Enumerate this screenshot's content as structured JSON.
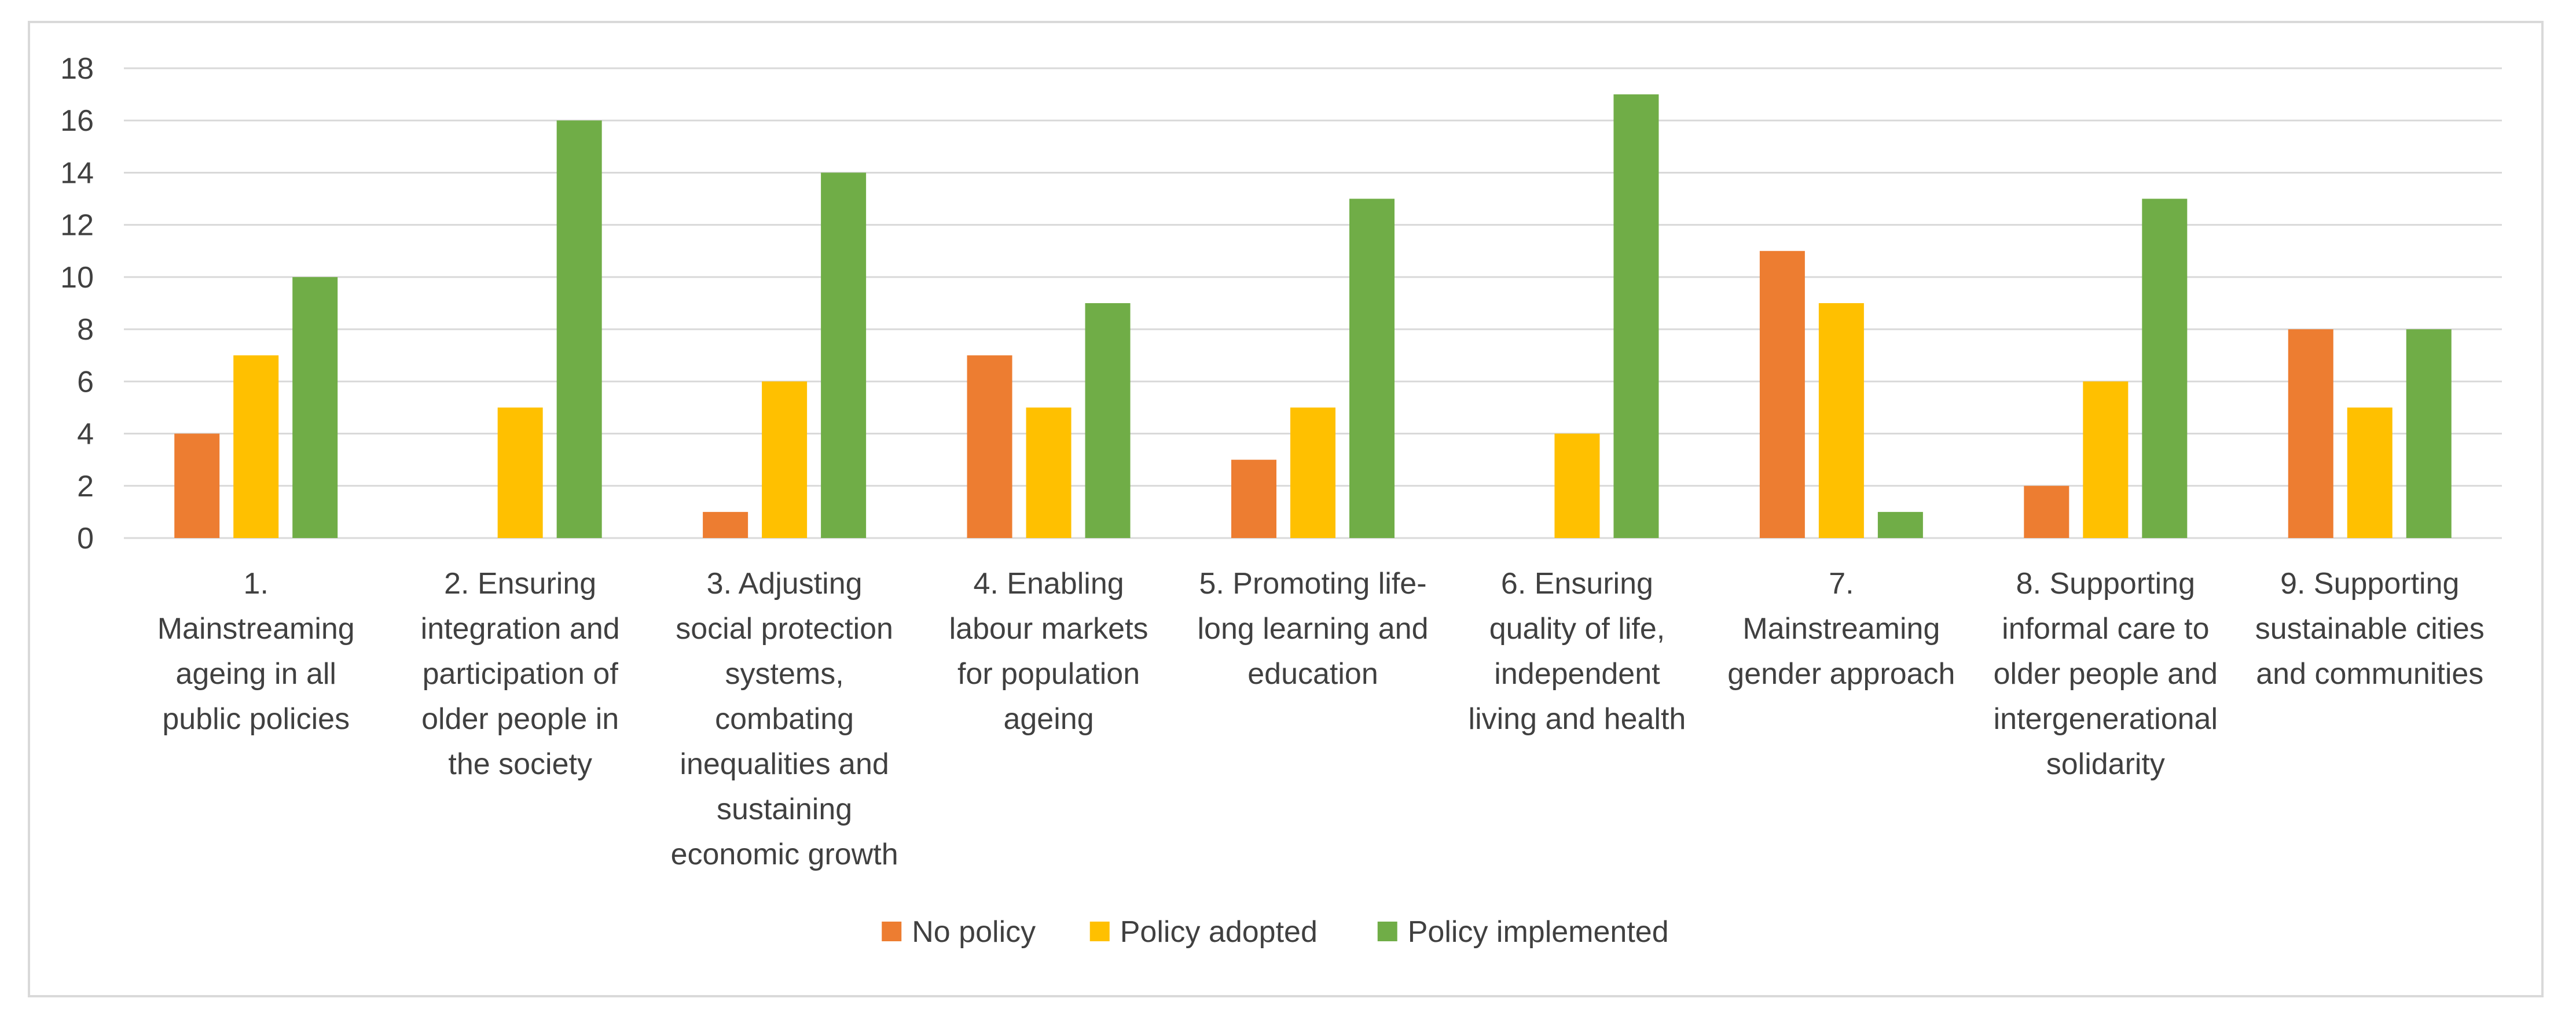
{
  "chart_data": {
    "type": "bar",
    "title": "",
    "xlabel": "",
    "ylabel": "",
    "ylim": [
      0,
      18
    ],
    "yticks": [
      0,
      2,
      4,
      6,
      8,
      10,
      12,
      14,
      16,
      18
    ],
    "grid": true,
    "legend_position": "bottom",
    "categories": [
      [
        "1.",
        "Mainstreaming",
        "ageing in all",
        "public policies"
      ],
      [
        "2. Ensuring",
        "integration and",
        "participation of",
        "older people in",
        "the society"
      ],
      [
        "3. Adjusting",
        "social protection",
        "systems,",
        "combating",
        "inequalities and",
        "sustaining",
        "economic growth"
      ],
      [
        "4. Enabling",
        "labour markets",
        "for population",
        "ageing"
      ],
      [
        "5. Promoting life-",
        "long learning and",
        "education"
      ],
      [
        "6. Ensuring",
        "quality of life,",
        "independent",
        "living and health"
      ],
      [
        "7.",
        "Mainstreaming",
        "gender approach"
      ],
      [
        "8. Supporting",
        "informal care to",
        "older people and",
        "intergenerational",
        "solidarity"
      ],
      [
        "9. Supporting",
        "sustainable cities",
        "and communities"
      ]
    ],
    "series": [
      {
        "name": "No policy",
        "color": "#ED7D31",
        "values": [
          4,
          0,
          1,
          7,
          3,
          0,
          11,
          2,
          8
        ]
      },
      {
        "name": "Policy adopted",
        "color": "#FFC000",
        "values": [
          7,
          5,
          6,
          5,
          5,
          4,
          9,
          6,
          5
        ]
      },
      {
        "name": "Policy implemented",
        "color": "#70AD47",
        "values": [
          10,
          16,
          14,
          9,
          13,
          17,
          1,
          13,
          8
        ]
      }
    ]
  }
}
